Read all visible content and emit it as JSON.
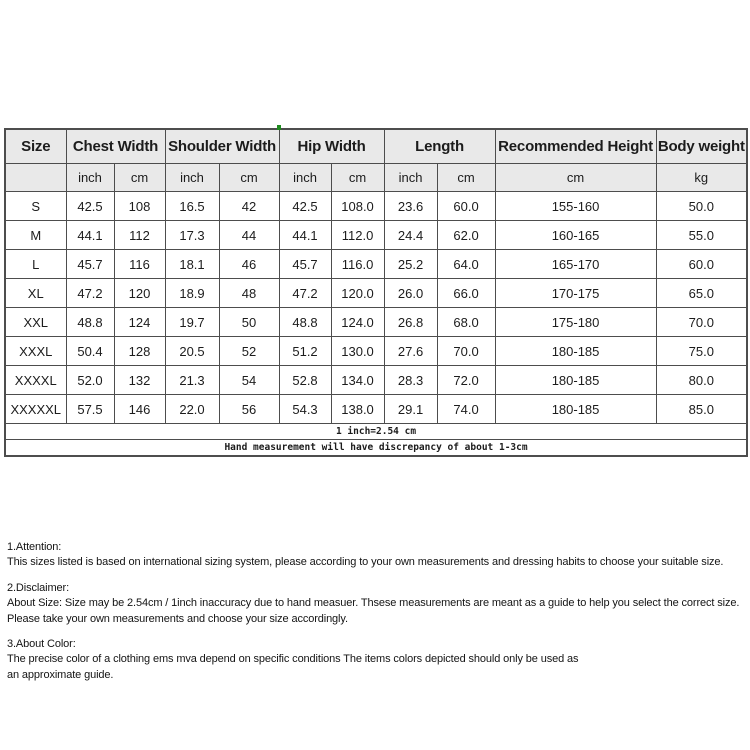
{
  "colors": {
    "header_bg": "#e9e9e9",
    "border": "#4d4d4d",
    "text": "#1c1c1c",
    "green_mark": "#1f8b1f",
    "background": "#ffffff"
  },
  "table": {
    "header_row1": [
      {
        "label": "Size",
        "span": 1
      },
      {
        "label": "Chest Width",
        "span": 2
      },
      {
        "label": "Shoulder Width",
        "span": 2
      },
      {
        "label": "Hip Width",
        "span": 2
      },
      {
        "label": "Length",
        "span": 2
      },
      {
        "label": "Recommended Height",
        "span": 1
      },
      {
        "label": "Body weight",
        "span": 1
      }
    ],
    "header_row2": [
      "",
      "inch",
      "cm",
      "inch",
      "cm",
      "inch",
      "cm",
      "inch",
      "cm",
      "cm",
      "kg"
    ],
    "rows": [
      [
        "S",
        "42.5",
        "108",
        "16.5",
        "42",
        "42.5",
        "108.0",
        "23.6",
        "60.0",
        "155-160",
        "50.0"
      ],
      [
        "M",
        "44.1",
        "112",
        "17.3",
        "44",
        "44.1",
        "112.0",
        "24.4",
        "62.0",
        "160-165",
        "55.0"
      ],
      [
        "L",
        "45.7",
        "116",
        "18.1",
        "46",
        "45.7",
        "116.0",
        "25.2",
        "64.0",
        "165-170",
        "60.0"
      ],
      [
        "XL",
        "47.2",
        "120",
        "18.9",
        "48",
        "47.2",
        "120.0",
        "26.0",
        "66.0",
        "170-175",
        "65.0"
      ],
      [
        "XXL",
        "48.8",
        "124",
        "19.7",
        "50",
        "48.8",
        "124.0",
        "26.8",
        "68.0",
        "175-180",
        "70.0"
      ],
      [
        "XXXL",
        "50.4",
        "128",
        "20.5",
        "52",
        "51.2",
        "130.0",
        "27.6",
        "70.0",
        "180-185",
        "75.0"
      ],
      [
        "XXXXL",
        "52.0",
        "132",
        "21.3",
        "54",
        "52.8",
        "134.0",
        "28.3",
        "72.0",
        "180-185",
        "80.0"
      ],
      [
        "XXXXXL",
        "57.5",
        "146",
        "22.0",
        "56",
        "54.3",
        "138.0",
        "29.1",
        "74.0",
        "180-185",
        "85.0"
      ]
    ],
    "notes": [
      "1 inch=2.54 cm",
      "Hand measurement will have discrepancy of about 1-3cm"
    ]
  },
  "sections": [
    {
      "heading": "1.Attention:",
      "lines": [
        "This sizes listed is based on international sizing system, please according to your own measurements and dressing habits to choose your suitable size."
      ]
    },
    {
      "heading": "2.Disclaimer:",
      "lines": [
        "About Size: Size may be 2.54cm / 1inch inaccuracy due to hand measuer. Thsese measurements are meant as a guide to help you select the correct size.",
        "Please take your own measurements and choose your size accordingly."
      ]
    },
    {
      "heading": "3.About Color:",
      "lines": [
        "The precise color of a clothing ems mva depend on specific conditions The items colors depicted should only be used as",
        "an approximate guide."
      ]
    }
  ]
}
